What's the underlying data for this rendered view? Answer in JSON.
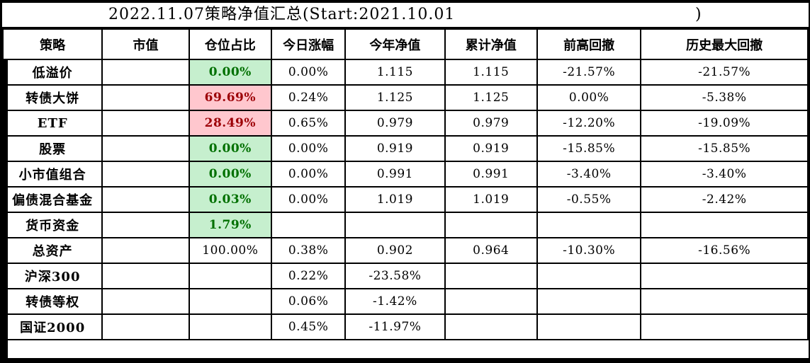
{
  "title": {
    "main": "2022.11.07策略净值汇总(Start:2021.10.01",
    "close_paren": ")"
  },
  "table": {
    "columns": [
      "策略",
      "市值",
      "仓位占比",
      "今日涨幅",
      "今年净值",
      "累计净值",
      "前高回撤",
      "历史最大回撤"
    ],
    "rows": [
      {
        "cells": [
          "低溢价",
          "",
          "0.00%",
          "0.00%",
          "1.115",
          "1.115",
          "-21.57%",
          "-21.57%"
        ],
        "position_style": "green"
      },
      {
        "cells": [
          "转债大饼",
          "",
          "69.69%",
          "0.24%",
          "1.125",
          "1.125",
          "0.00%",
          "-5.38%"
        ],
        "position_style": "red"
      },
      {
        "cells": [
          "ETF",
          "",
          "28.49%",
          "0.65%",
          "0.979",
          "0.979",
          "-12.20%",
          "-19.09%"
        ],
        "position_style": "red"
      },
      {
        "cells": [
          "股票",
          "",
          "0.00%",
          "0.00%",
          "0.919",
          "0.919",
          "-15.85%",
          "-15.85%"
        ],
        "position_style": "green"
      },
      {
        "cells": [
          "小市值组合",
          "",
          "0.00%",
          "0.00%",
          "0.991",
          "0.991",
          "-3.40%",
          "-3.40%"
        ],
        "position_style": "green"
      },
      {
        "cells": [
          "偏债混合基金",
          "",
          "0.03%",
          "0.00%",
          "1.019",
          "1.019",
          "-0.55%",
          "-2.42%"
        ],
        "position_style": "green"
      },
      {
        "cells": [
          "货币资金",
          "",
          "1.79%",
          "",
          "",
          "",
          "",
          ""
        ],
        "position_style": "green"
      },
      {
        "cells": [
          "总资产",
          "",
          "100.00%",
          "0.38%",
          "0.902",
          "0.964",
          "-10.30%",
          "-16.56%"
        ],
        "position_style": "none"
      },
      {
        "cells": [
          "沪深300",
          "",
          "",
          "0.22%",
          "-23.58%",
          "",
          "",
          ""
        ],
        "position_style": "none"
      },
      {
        "cells": [
          "转债等权",
          "",
          "",
          "0.06%",
          "-1.42%",
          "",
          "",
          ""
        ],
        "position_style": "none"
      },
      {
        "cells": [
          "国证2000",
          "",
          "",
          "0.45%",
          "-11.97%",
          "",
          "",
          ""
        ],
        "position_style": "none"
      }
    ]
  },
  "colors": {
    "positive_bg": "#C6EFCE",
    "positive_text": "#007000",
    "negative_bg": "#FFC7CE",
    "negative_text": "#9C0006",
    "grid": "#000000"
  }
}
